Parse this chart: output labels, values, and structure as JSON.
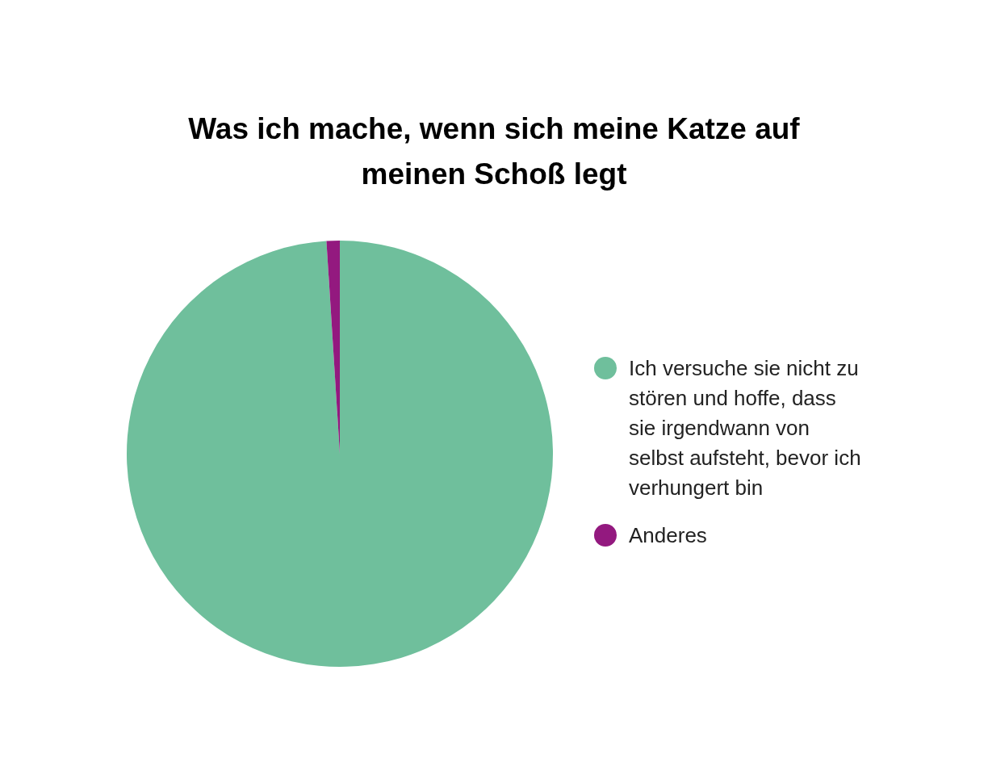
{
  "chart_data": {
    "type": "pie",
    "title": "Was ich mache, wenn sich meine Katze auf meinen Schoß legt",
    "categories": [
      "Ich versuche sie nicht zu stören und hoffe, dass sie irgendwann von selbst aufsteht, bevor ich verhungert bin",
      "Anderes"
    ],
    "values": [
      99,
      1
    ],
    "colors": [
      "#6fbf9c",
      "#93197f"
    ],
    "legend": "right"
  }
}
